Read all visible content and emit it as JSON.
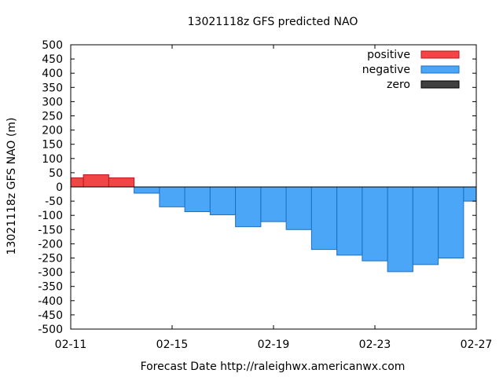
{
  "chart_data": {
    "type": "bar",
    "title": "13021118z GFS predicted NAO",
    "xlabel": "Forecast Date http://raleighwx.americanwx.com",
    "ylabel": "13021118z GFS NAO (m)",
    "ylim": [
      -500,
      500
    ],
    "ytick_step": 50,
    "xlim": [
      0,
      16
    ],
    "xticks": [
      {
        "x": 0,
        "label": "02-11"
      },
      {
        "x": 4,
        "label": "02-15"
      },
      {
        "x": 8,
        "label": "02-19"
      },
      {
        "x": 12,
        "label": "02-23"
      },
      {
        "x": 16,
        "label": "02-27"
      }
    ],
    "grid": false,
    "legend_position": "top-right",
    "series": [
      {
        "name": "positive",
        "color": "#f24646"
      },
      {
        "name": "negative",
        "color": "#4ba6f8"
      },
      {
        "name": "zero",
        "color": "#404040"
      }
    ],
    "bars": [
      {
        "x0": 0,
        "x1": 0.5,
        "value": 32
      },
      {
        "x0": 0.5,
        "x1": 1.5,
        "value": 43
      },
      {
        "x0": 1.5,
        "x1": 2.5,
        "value": 32
      },
      {
        "x0": 2.5,
        "x1": 3.5,
        "value": -22
      },
      {
        "x0": 3.5,
        "x1": 4.5,
        "value": -70
      },
      {
        "x0": 4.5,
        "x1": 5.5,
        "value": -87
      },
      {
        "x0": 5.5,
        "x1": 6.5,
        "value": -98
      },
      {
        "x0": 6.5,
        "x1": 7.5,
        "value": -140
      },
      {
        "x0": 7.5,
        "x1": 8.5,
        "value": -122
      },
      {
        "x0": 8.5,
        "x1": 9.5,
        "value": -150
      },
      {
        "x0": 9.5,
        "x1": 10.5,
        "value": -220
      },
      {
        "x0": 10.5,
        "x1": 11.5,
        "value": -240
      },
      {
        "x0": 11.5,
        "x1": 12.5,
        "value": -260
      },
      {
        "x0": 12.5,
        "x1": 13.5,
        "value": -298
      },
      {
        "x0": 13.5,
        "x1": 14.5,
        "value": -273
      },
      {
        "x0": 14.5,
        "x1": 15.5,
        "value": -250
      },
      {
        "x0": 15.5,
        "x1": 16,
        "value": -50
      }
    ]
  }
}
